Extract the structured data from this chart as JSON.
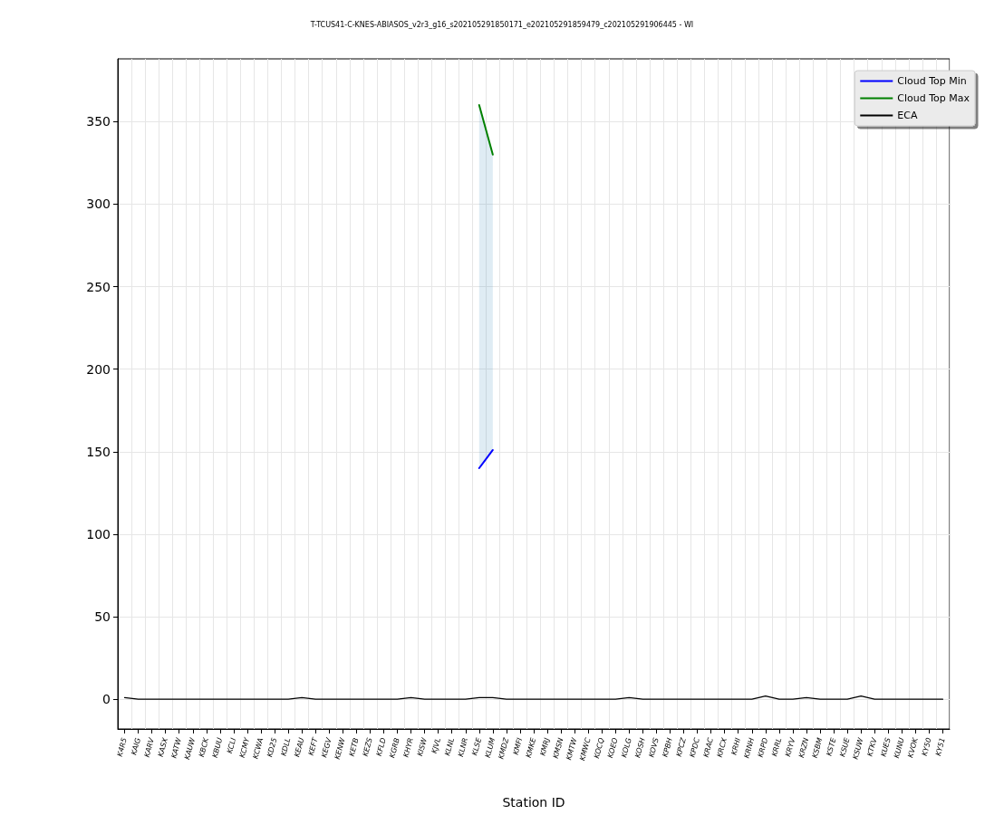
{
  "chart_data": {
    "type": "line",
    "title": "T-TCUS41-C-KNES-ABIASOS_v2r3_g16_s202105291850171_e202105291859479_c202105291906445 - WI",
    "xlabel": "Station ID",
    "categories": [
      "K4R5",
      "KAIG",
      "KARV",
      "KASX",
      "KATW",
      "KAUW",
      "KBCK",
      "KBUU",
      "KCLI",
      "KCMY",
      "KCWA",
      "KD25",
      "KDLL",
      "KEAU",
      "KEFT",
      "KEGV",
      "KENW",
      "KETB",
      "KEZS",
      "KFLD",
      "KGRB",
      "KHYR",
      "KISW",
      "KJVL",
      "KLNL",
      "KLNR",
      "KLSE",
      "KLUM",
      "KMDZ",
      "KMFI",
      "KMKE",
      "KMRJ",
      "KMSN",
      "KMTW",
      "KMWC",
      "KOCQ",
      "KOEO",
      "KOLG",
      "KOSH",
      "KOVS",
      "KPBH",
      "KPCZ",
      "KPDC",
      "KRAC",
      "KRCX",
      "KRHI",
      "KRNH",
      "KRPD",
      "KRRL",
      "KRYV",
      "KRZN",
      "KSBM",
      "KSTE",
      "KSUE",
      "KSUW",
      "KTKV",
      "KUES",
      "KUNU",
      "KVOK",
      "KY50",
      "KY51"
    ],
    "series": [
      {
        "name": "Cloud Top Min",
        "color": "#0000ff",
        "values": [
          null,
          null,
          null,
          null,
          null,
          null,
          null,
          null,
          null,
          null,
          null,
          null,
          null,
          null,
          null,
          null,
          null,
          null,
          null,
          null,
          null,
          null,
          null,
          null,
          null,
          null,
          140,
          151,
          null,
          null,
          null,
          null,
          null,
          null,
          null,
          null,
          null,
          null,
          null,
          null,
          null,
          null,
          null,
          null,
          null,
          null,
          null,
          null,
          null,
          null,
          null,
          null,
          null,
          null,
          null,
          null,
          null,
          null,
          null,
          null,
          null
        ]
      },
      {
        "name": "Cloud Top Max",
        "color": "#008000",
        "values": [
          null,
          null,
          null,
          null,
          null,
          null,
          null,
          null,
          null,
          null,
          null,
          null,
          null,
          null,
          null,
          null,
          null,
          null,
          null,
          null,
          null,
          null,
          null,
          null,
          null,
          null,
          360,
          330,
          null,
          null,
          null,
          null,
          null,
          null,
          null,
          null,
          null,
          null,
          null,
          null,
          null,
          null,
          null,
          null,
          null,
          null,
          null,
          null,
          null,
          null,
          null,
          null,
          null,
          null,
          null,
          null,
          null,
          null,
          null,
          null,
          null
        ],
        "lower": [
          null,
          null,
          null,
          null,
          null,
          null,
          null,
          null,
          null,
          null,
          null,
          null,
          null,
          null,
          null,
          null,
          null,
          null,
          null,
          null,
          null,
          null,
          null,
          null,
          null,
          null,
          140,
          151,
          null,
          null,
          null,
          null,
          null,
          null,
          null,
          null,
          null,
          null,
          null,
          null,
          null,
          null,
          null,
          null,
          null,
          null,
          null,
          null,
          null,
          null,
          null,
          null,
          null,
          null,
          null,
          null,
          null,
          null,
          null,
          null,
          null
        ],
        "upper": [
          null,
          null,
          null,
          null,
          null,
          null,
          null,
          null,
          null,
          null,
          null,
          null,
          null,
          null,
          null,
          null,
          null,
          null,
          null,
          null,
          null,
          null,
          null,
          null,
          null,
          null,
          360,
          330,
          null,
          null,
          null,
          null,
          null,
          null,
          null,
          null,
          null,
          null,
          null,
          null,
          null,
          null,
          null,
          null,
          null,
          null,
          null,
          null,
          null,
          null,
          null,
          null,
          null,
          null,
          null,
          null,
          null,
          null,
          null,
          null,
          null
        ]
      },
      {
        "name": "ECA",
        "color": "#000000",
        "values": [
          1,
          0,
          0,
          0,
          0,
          0,
          0,
          0,
          0,
          0,
          0,
          0,
          0,
          1,
          0,
          0,
          0,
          0,
          0,
          0,
          0,
          1,
          0,
          0,
          0,
          0,
          1,
          1,
          0,
          0,
          0,
          0,
          0,
          0,
          0,
          0,
          0,
          1,
          0,
          0,
          0,
          0,
          0,
          0,
          0,
          0,
          0,
          2,
          0,
          0,
          1,
          0,
          0,
          0,
          2,
          0,
          0,
          0,
          0,
          0,
          0
        ]
      }
    ],
    "ylim": [
      -18,
      388
    ],
    "yticks": [
      0,
      50,
      100,
      150,
      200,
      250,
      300,
      350
    ],
    "grid": true,
    "legend": "top right",
    "marker": "none",
    "line_style": "solid"
  }
}
